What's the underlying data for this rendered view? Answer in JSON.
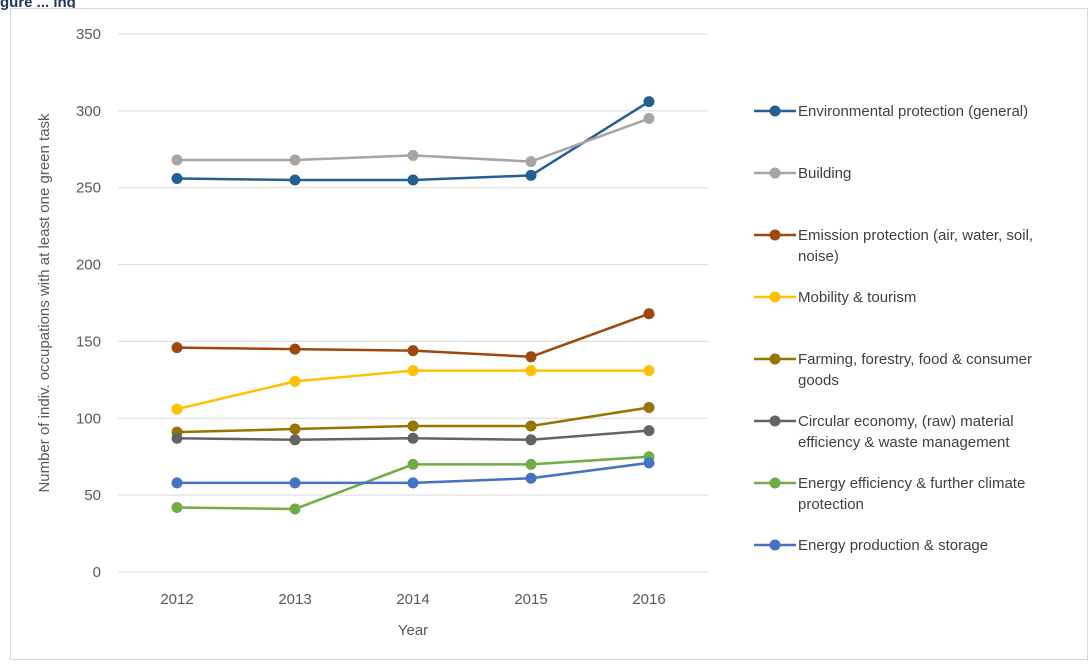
{
  "header": {
    "partial_title": "gure ... ing"
  },
  "chart_data": {
    "type": "line",
    "title": "",
    "xlabel": "Year",
    "ylabel": "Number of indiv. occupations with at least one green task",
    "x": [
      "2012",
      "2013",
      "2014",
      "2015",
      "2016"
    ],
    "ylim": [
      0,
      350
    ],
    "yticks": [
      0,
      50,
      100,
      150,
      200,
      250,
      300,
      350
    ],
    "grid": true,
    "legend_position": "right",
    "series": [
      {
        "name": "Environmental protection (general)",
        "legend_lines": [
          "Environmental protection (general)"
        ],
        "color": "#255e91",
        "values": [
          256,
          255,
          255,
          258,
          306
        ]
      },
      {
        "name": "Building",
        "legend_lines": [
          "Building"
        ],
        "color": "#a5a5a5",
        "values": [
          268,
          268,
          271,
          267,
          295
        ]
      },
      {
        "name": "Emission protection (air, water, soil, noise)",
        "legend_lines": [
          "Emission protection (air, water, soil,",
          "noise)"
        ],
        "color": "#9e480e",
        "values": [
          146,
          145,
          144,
          140,
          168
        ]
      },
      {
        "name": "Mobility & tourism",
        "legend_lines": [
          "Mobility & tourism"
        ],
        "color": "#ffc000",
        "values": [
          106,
          124,
          131,
          131,
          131
        ]
      },
      {
        "name": "Farming, forestry, food & consumer goods",
        "legend_lines": [
          "Farming, forestry, food & consumer",
          "goods"
        ],
        "color": "#997300",
        "values": [
          91,
          93,
          95,
          95,
          107
        ]
      },
      {
        "name": "Circular economy, (raw) material efficiency & waste management",
        "legend_lines": [
          "Circular economy, (raw) material",
          "efficiency & waste management"
        ],
        "color": "#636363",
        "values": [
          87,
          86,
          87,
          86,
          92
        ]
      },
      {
        "name": "Energy efficiency & further climate protection",
        "legend_lines": [
          "Energy efficiency & further climate",
          "protection"
        ],
        "color": "#70ad47",
        "values": [
          42,
          41,
          70,
          70,
          75
        ]
      },
      {
        "name": "Energy production & storage",
        "legend_lines": [
          "Energy production & storage"
        ],
        "color": "#4472c4",
        "values": [
          58,
          58,
          58,
          61,
          71
        ]
      }
    ]
  }
}
